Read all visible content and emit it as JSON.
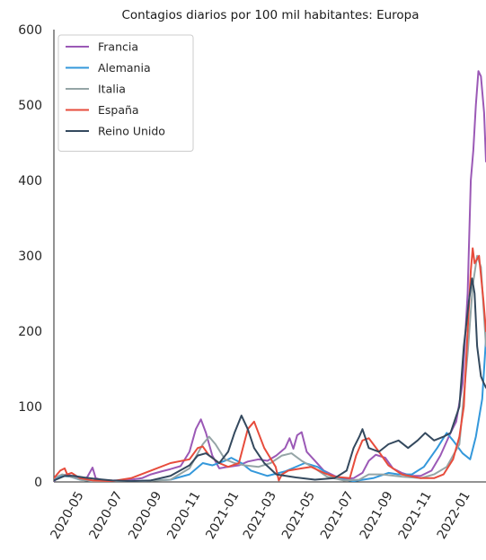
{
  "chart_data": {
    "type": "line",
    "title": "Contagios diarios por 100 mil habitantes: Europa",
    "xlabel": "",
    "ylabel": "",
    "ylim": [
      0,
      600
    ],
    "xlim": [
      "2020-03-15",
      "2022-01-26"
    ],
    "yticks": [
      0,
      100,
      200,
      300,
      400,
      500,
      600
    ],
    "xticks": [
      "2020-05",
      "2020-07",
      "2020-09",
      "2020-11",
      "2021-01",
      "2021-03",
      "2021-05",
      "2021-07",
      "2021-09",
      "2021-11",
      "2022-01"
    ],
    "grid": false,
    "legend_position": "top-left",
    "series": [
      {
        "name": "Francia",
        "color": "#9b59b6",
        "points": [
          [
            "2020-03-15",
            1
          ],
          [
            "2020-03-25",
            8
          ],
          [
            "2020-04-05",
            10
          ],
          [
            "2020-04-15",
            7
          ],
          [
            "2020-04-25",
            5
          ],
          [
            "2020-05-05",
            4
          ],
          [
            "2020-05-15",
            19
          ],
          [
            "2020-05-20",
            5
          ],
          [
            "2020-06-01",
            2
          ],
          [
            "2020-06-15",
            2
          ],
          [
            "2020-07-01",
            2
          ],
          [
            "2020-07-15",
            3
          ],
          [
            "2020-08-01",
            5
          ],
          [
            "2020-08-15",
            10
          ],
          [
            "2020-09-01",
            14
          ],
          [
            "2020-09-15",
            17
          ],
          [
            "2020-10-01",
            21
          ],
          [
            "2020-10-15",
            40
          ],
          [
            "2020-10-25",
            70
          ],
          [
            "2020-11-02",
            83
          ],
          [
            "2020-11-10",
            65
          ],
          [
            "2020-11-20",
            35
          ],
          [
            "2020-12-01",
            18
          ],
          [
            "2020-12-15",
            20
          ],
          [
            "2021-01-01",
            22
          ],
          [
            "2021-01-15",
            27
          ],
          [
            "2021-02-01",
            30
          ],
          [
            "2021-02-15",
            28
          ],
          [
            "2021-03-01",
            35
          ],
          [
            "2021-03-15",
            45
          ],
          [
            "2021-03-22",
            58
          ],
          [
            "2021-03-28",
            44
          ],
          [
            "2021-04-03",
            62
          ],
          [
            "2021-04-10",
            66
          ],
          [
            "2021-04-18",
            40
          ],
          [
            "2021-05-01",
            28
          ],
          [
            "2021-05-15",
            15
          ],
          [
            "2021-06-01",
            8
          ],
          [
            "2021-06-15",
            4
          ],
          [
            "2021-07-01",
            5
          ],
          [
            "2021-07-15",
            12
          ],
          [
            "2021-07-25",
            28
          ],
          [
            "2021-08-05",
            36
          ],
          [
            "2021-08-20",
            32
          ],
          [
            "2021-09-01",
            18
          ],
          [
            "2021-09-15",
            12
          ],
          [
            "2021-10-01",
            8
          ],
          [
            "2021-10-15",
            8
          ],
          [
            "2021-11-01",
            15
          ],
          [
            "2021-11-15",
            35
          ],
          [
            "2021-12-01",
            65
          ],
          [
            "2021-12-10",
            80
          ],
          [
            "2021-12-20",
            130
          ],
          [
            "2021-12-28",
            250
          ],
          [
            "2022-01-02",
            400
          ],
          [
            "2022-01-06",
            440
          ],
          [
            "2022-01-10",
            500
          ],
          [
            "2022-01-14",
            545
          ],
          [
            "2022-01-18",
            538
          ],
          [
            "2022-01-23",
            490
          ],
          [
            "2022-01-26",
            425
          ]
        ]
      },
      {
        "name": "Alemania",
        "color": "#3498db",
        "points": [
          [
            "2020-03-15",
            2
          ],
          [
            "2020-03-28",
            8
          ],
          [
            "2020-04-10",
            7
          ],
          [
            "2020-04-25",
            3
          ],
          [
            "2020-05-15",
            1
          ],
          [
            "2020-07-01",
            0.5
          ],
          [
            "2020-08-15",
            2
          ],
          [
            "2020-09-15",
            3
          ],
          [
            "2020-10-15",
            10
          ],
          [
            "2020-11-05",
            25
          ],
          [
            "2020-11-20",
            22
          ],
          [
            "2020-12-10",
            28
          ],
          [
            "2020-12-20",
            32
          ],
          [
            "2021-01-05",
            25
          ],
          [
            "2021-01-20",
            15
          ],
          [
            "2021-02-15",
            8
          ],
          [
            "2021-03-15",
            14
          ],
          [
            "2021-04-15",
            25
          ],
          [
            "2021-05-05",
            20
          ],
          [
            "2021-06-01",
            5
          ],
          [
            "2021-07-01",
            1
          ],
          [
            "2021-08-01",
            5
          ],
          [
            "2021-08-25",
            12
          ],
          [
            "2021-09-10",
            10
          ],
          [
            "2021-10-01",
            10
          ],
          [
            "2021-10-20",
            20
          ],
          [
            "2021-11-10",
            45
          ],
          [
            "2021-11-25",
            65
          ],
          [
            "2021-12-05",
            55
          ],
          [
            "2021-12-20",
            38
          ],
          [
            "2022-01-01",
            30
          ],
          [
            "2022-01-10",
            60
          ],
          [
            "2022-01-20",
            110
          ],
          [
            "2022-01-26",
            190
          ]
        ]
      },
      {
        "name": "Italia",
        "color": "#95a5a6",
        "points": [
          [
            "2020-03-15",
            5
          ],
          [
            "2020-03-28",
            10
          ],
          [
            "2020-04-10",
            7
          ],
          [
            "2020-04-25",
            3
          ],
          [
            "2020-05-15",
            1
          ],
          [
            "2020-07-01",
            0.5
          ],
          [
            "2020-08-15",
            1.5
          ],
          [
            "2020-09-15",
            3
          ],
          [
            "2020-10-15",
            18
          ],
          [
            "2020-11-05",
            50
          ],
          [
            "2020-11-15",
            60
          ],
          [
            "2020-11-25",
            50
          ],
          [
            "2020-12-10",
            30
          ],
          [
            "2020-12-25",
            25
          ],
          [
            "2021-01-10",
            22
          ],
          [
            "2021-02-01",
            20
          ],
          [
            "2021-02-20",
            25
          ],
          [
            "2021-03-10",
            35
          ],
          [
            "2021-03-25",
            38
          ],
          [
            "2021-04-10",
            28
          ],
          [
            "2021-05-01",
            18
          ],
          [
            "2021-05-20",
            7
          ],
          [
            "2021-06-15",
            2
          ],
          [
            "2021-07-10",
            3
          ],
          [
            "2021-07-25",
            10
          ],
          [
            "2021-08-15",
            10
          ],
          [
            "2021-09-15",
            7
          ],
          [
            "2021-10-15",
            5
          ],
          [
            "2021-11-05",
            10
          ],
          [
            "2021-11-25",
            20
          ],
          [
            "2021-12-15",
            50
          ],
          [
            "2021-12-28",
            170
          ],
          [
            "2022-01-05",
            260
          ],
          [
            "2022-01-12",
            300
          ],
          [
            "2022-01-18",
            285
          ],
          [
            "2022-01-26",
            180
          ]
        ]
      },
      {
        "name": "España",
        "color": "#e74c3c",
        "points": [
          [
            "2020-03-15",
            5
          ],
          [
            "2020-03-25",
            15
          ],
          [
            "2020-04-01",
            18
          ],
          [
            "2020-04-05",
            10
          ],
          [
            "2020-04-12",
            12
          ],
          [
            "2020-04-25",
            5
          ],
          [
            "2020-05-15",
            2
          ],
          [
            "2020-06-15",
            1
          ],
          [
            "2020-07-15",
            5
          ],
          [
            "2020-08-15",
            15
          ],
          [
            "2020-09-15",
            25
          ],
          [
            "2020-10-15",
            30
          ],
          [
            "2020-10-28",
            45
          ],
          [
            "2020-11-05",
            47
          ],
          [
            "2020-11-15",
            35
          ],
          [
            "2020-12-01",
            25
          ],
          [
            "2020-12-15",
            20
          ],
          [
            "2021-01-01",
            25
          ],
          [
            "2021-01-15",
            70
          ],
          [
            "2021-01-25",
            80
          ],
          [
            "2021-02-10",
            45
          ],
          [
            "2021-02-28",
            20
          ],
          [
            "2021-03-05",
            2
          ],
          [
            "2021-03-10",
            10
          ],
          [
            "2021-03-20",
            15
          ],
          [
            "2021-04-10",
            18
          ],
          [
            "2021-04-25",
            20
          ],
          [
            "2021-05-15",
            12
          ],
          [
            "2021-06-01",
            7
          ],
          [
            "2021-06-25",
            5
          ],
          [
            "2021-07-05",
            35
          ],
          [
            "2021-07-15",
            55
          ],
          [
            "2021-07-25",
            58
          ],
          [
            "2021-08-10",
            40
          ],
          [
            "2021-08-25",
            22
          ],
          [
            "2021-09-15",
            10
          ],
          [
            "2021-10-15",
            5
          ],
          [
            "2021-11-05",
            5
          ],
          [
            "2021-11-20",
            10
          ],
          [
            "2021-12-05",
            30
          ],
          [
            "2021-12-15",
            60
          ],
          [
            "2021-12-22",
            100
          ],
          [
            "2021-12-28",
            200
          ],
          [
            "2022-01-02",
            280
          ],
          [
            "2022-01-05",
            310
          ],
          [
            "2022-01-08",
            290
          ],
          [
            "2022-01-15",
            300
          ],
          [
            "2022-01-22",
            240
          ],
          [
            "2022-01-26",
            200
          ]
        ]
      },
      {
        "name": "Reino Unido",
        "color": "#34495e",
        "points": [
          [
            "2020-03-15",
            2
          ],
          [
            "2020-04-01",
            8
          ],
          [
            "2020-04-15",
            8
          ],
          [
            "2020-05-01",
            6
          ],
          [
            "2020-05-20",
            4
          ],
          [
            "2020-06-15",
            2
          ],
          [
            "2020-07-15",
            1
          ],
          [
            "2020-08-15",
            2
          ],
          [
            "2020-09-15",
            8
          ],
          [
            "2020-10-15",
            22
          ],
          [
            "2020-10-28",
            35
          ],
          [
            "2020-11-10",
            38
          ],
          [
            "2020-11-20",
            32
          ],
          [
            "2020-12-01",
            25
          ],
          [
            "2020-12-15",
            40
          ],
          [
            "2020-12-25",
            65
          ],
          [
            "2021-01-05",
            88
          ],
          [
            "2021-01-15",
            70
          ],
          [
            "2021-01-25",
            45
          ],
          [
            "2021-02-10",
            25
          ],
          [
            "2021-03-01",
            10
          ],
          [
            "2021-04-01",
            6
          ],
          [
            "2021-05-01",
            3
          ],
          [
            "2021-06-01",
            5
          ],
          [
            "2021-06-20",
            15
          ],
          [
            "2021-07-01",
            45
          ],
          [
            "2021-07-10",
            60
          ],
          [
            "2021-07-15",
            70
          ],
          [
            "2021-07-25",
            45
          ],
          [
            "2021-08-10",
            40
          ],
          [
            "2021-08-25",
            50
          ],
          [
            "2021-09-10",
            55
          ],
          [
            "2021-09-25",
            45
          ],
          [
            "2021-10-10",
            55
          ],
          [
            "2021-10-22",
            65
          ],
          [
            "2021-11-05",
            55
          ],
          [
            "2021-11-20",
            60
          ],
          [
            "2021-12-01",
            65
          ],
          [
            "2021-12-15",
            100
          ],
          [
            "2021-12-22",
            180
          ],
          [
            "2021-12-30",
            240
          ],
          [
            "2022-01-04",
            270
          ],
          [
            "2022-01-08",
            250
          ],
          [
            "2022-01-12",
            180
          ],
          [
            "2022-01-18",
            140
          ],
          [
            "2022-01-22",
            132
          ],
          [
            "2022-01-26",
            125
          ]
        ]
      }
    ]
  }
}
